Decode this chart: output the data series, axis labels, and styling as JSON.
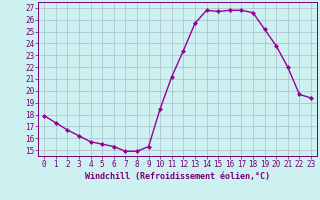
{
  "x": [
    0,
    1,
    2,
    3,
    4,
    5,
    6,
    7,
    8,
    9,
    10,
    11,
    12,
    13,
    14,
    15,
    16,
    17,
    18,
    19,
    20,
    21,
    22,
    23
  ],
  "y": [
    17.9,
    17.3,
    16.7,
    16.2,
    15.7,
    15.5,
    15.3,
    14.9,
    14.9,
    15.3,
    18.5,
    21.2,
    23.4,
    25.7,
    26.8,
    26.7,
    26.8,
    26.8,
    26.6,
    25.2,
    23.8,
    22.0,
    19.7,
    19.4
  ],
  "line_color": "#990099",
  "marker": "D",
  "markersize": 2,
  "linewidth": 1.0,
  "xlabel": "Windchill (Refroidissement éolien,°C)",
  "ylabel_ticks": [
    15,
    16,
    17,
    18,
    19,
    20,
    21,
    22,
    23,
    24,
    25,
    26,
    27
  ],
  "ylim": [
    14.5,
    27.5
  ],
  "xlim": [
    -0.5,
    23.5
  ],
  "bg_color": "#cdf0f0",
  "grid_color": "#aabbcc",
  "tick_fontsize": 5.5,
  "xlabel_fontsize": 6.0
}
